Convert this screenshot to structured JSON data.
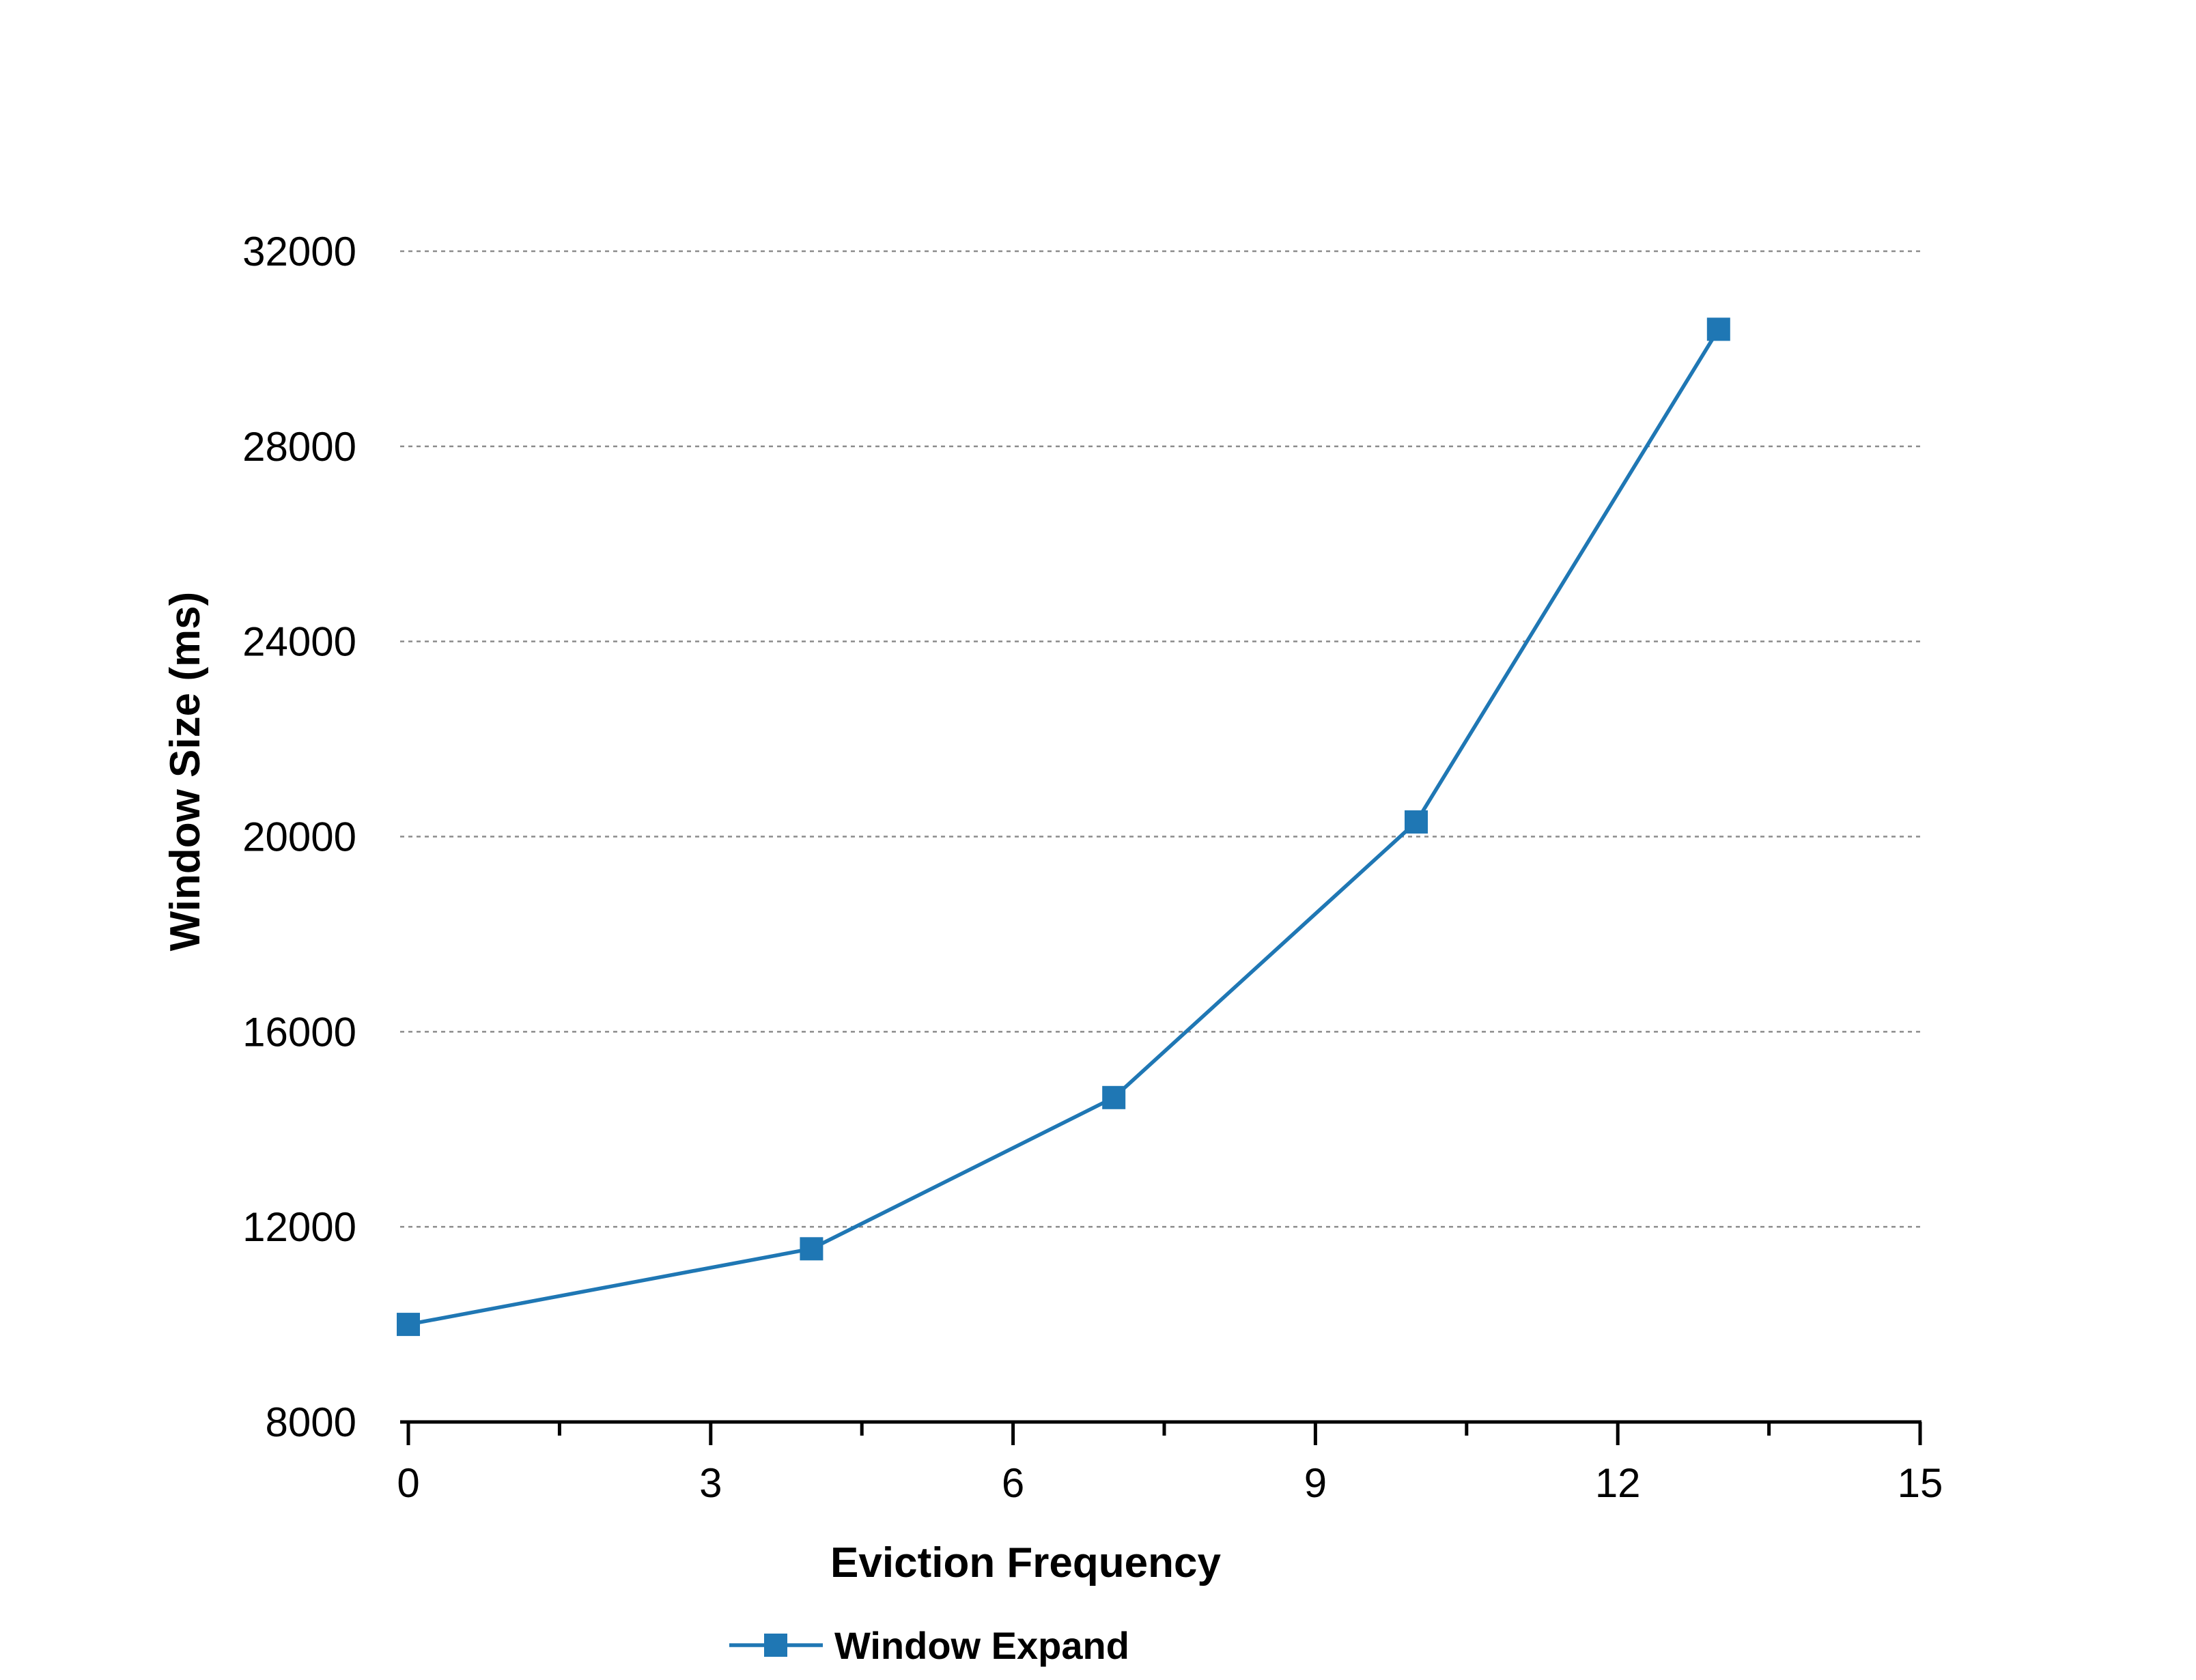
{
  "chart_data": {
    "type": "line",
    "xlabel": "Eviction Frequency",
    "ylabel": "Window Size (ms)",
    "xlim": [
      0,
      15
    ],
    "ylim": [
      8000,
      32000
    ],
    "xticks": [
      0,
      3,
      6,
      9,
      12,
      15
    ],
    "yticks": [
      8000,
      12000,
      16000,
      20000,
      24000,
      28000,
      32000
    ],
    "grid": "horizontal-dashed",
    "legend_position": "bottom",
    "series": [
      {
        "name": "Window Expand",
        "color": "#1f77b4",
        "marker": "square",
        "x": [
          0,
          4,
          7,
          10,
          13
        ],
        "y": [
          10000,
          11550,
          14650,
          20300,
          30400
        ]
      }
    ]
  }
}
